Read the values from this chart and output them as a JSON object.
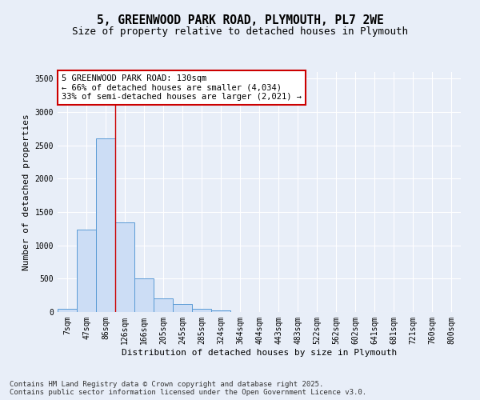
{
  "title_line1": "5, GREENWOOD PARK ROAD, PLYMOUTH, PL7 2WE",
  "title_line2": "Size of property relative to detached houses in Plymouth",
  "xlabel": "Distribution of detached houses by size in Plymouth",
  "ylabel": "Number of detached properties",
  "categories": [
    "7sqm",
    "47sqm",
    "86sqm",
    "126sqm",
    "166sqm",
    "205sqm",
    "245sqm",
    "285sqm",
    "324sqm",
    "364sqm",
    "404sqm",
    "443sqm",
    "483sqm",
    "522sqm",
    "562sqm",
    "602sqm",
    "641sqm",
    "681sqm",
    "721sqm",
    "760sqm",
    "800sqm"
  ],
  "values": [
    50,
    1240,
    2600,
    1350,
    500,
    200,
    120,
    50,
    30,
    0,
    0,
    0,
    0,
    0,
    0,
    0,
    0,
    0,
    0,
    0,
    0
  ],
  "bar_color": "#ccddf5",
  "bar_edge_color": "#5b9bd5",
  "vline_color": "#cc0000",
  "vline_x_index": 3,
  "annotation_text": "5 GREENWOOD PARK ROAD: 130sqm\n← 66% of detached houses are smaller (4,034)\n33% of semi-detached houses are larger (2,021) →",
  "annotation_box_facecolor": "white",
  "annotation_box_edgecolor": "#cc0000",
  "ylim": [
    0,
    3600
  ],
  "yticks": [
    0,
    500,
    1000,
    1500,
    2000,
    2500,
    3000,
    3500
  ],
  "background_color": "#e8eef8",
  "plot_bg_color": "#e8eef8",
  "grid_color": "#ffffff",
  "footer_line1": "Contains HM Land Registry data © Crown copyright and database right 2025.",
  "footer_line2": "Contains public sector information licensed under the Open Government Licence v3.0.",
  "title_fontsize": 10.5,
  "subtitle_fontsize": 9,
  "axis_label_fontsize": 8,
  "tick_fontsize": 7,
  "annotation_fontsize": 7.5,
  "footer_fontsize": 6.5
}
